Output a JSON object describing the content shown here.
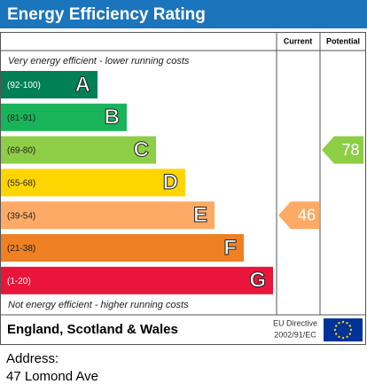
{
  "header": {
    "title": "Energy Efficiency Rating"
  },
  "columns": {
    "current": "Current",
    "potential": "Potential"
  },
  "top_note": "Very energy efficient - lower running costs",
  "bottom_note": "Not energy efficient - higher running costs",
  "bands": [
    {
      "range": "(92-100)",
      "letter": "A",
      "color": "#008054"
    },
    {
      "range": "(81-91)",
      "letter": "B",
      "color": "#19b459"
    },
    {
      "range": "(69-80)",
      "letter": "C",
      "color": "#8dce46"
    },
    {
      "range": "(55-68)",
      "letter": "D",
      "color": "#ffd500"
    },
    {
      "range": "(39-54)",
      "letter": "E",
      "color": "#fcaa65"
    },
    {
      "range": "(21-38)",
      "letter": "F",
      "color": "#ef8023"
    },
    {
      "range": "(1-20)",
      "letter": "G",
      "color": "#e9153b"
    }
  ],
  "ratings": {
    "current": 46,
    "potential": 78
  },
  "footer": {
    "region": "England, Scotland & Wales",
    "directive_line1": "EU Directive",
    "directive_line2": "2002/91/EC"
  },
  "address": {
    "label": "Address:",
    "value": "47 Lomond Ave"
  }
}
